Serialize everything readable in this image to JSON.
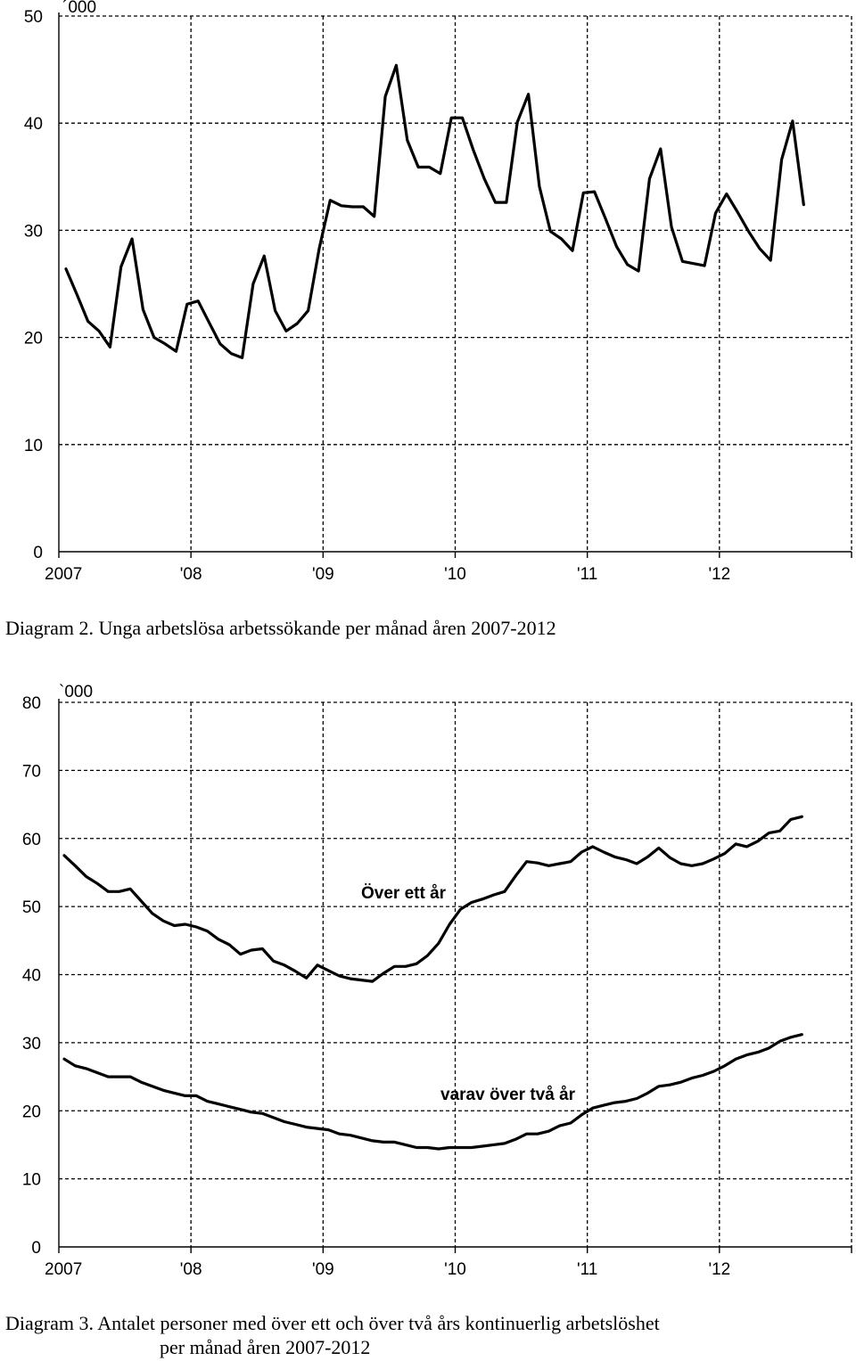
{
  "chart_data": [
    {
      "type": "line",
      "unit_label": "´000",
      "x_ticks": [
        "2007",
        "'08",
        "'09",
        "'10",
        "'11",
        "'12"
      ],
      "ylim": [
        0,
        50
      ],
      "y_ticks": [
        "0",
        "10",
        "20",
        "30",
        "40",
        "50"
      ],
      "grid": true,
      "series": [
        {
          "values": [
            26.4,
            24.0,
            21.5,
            20.6,
            19.1,
            26.6,
            29.2,
            22.6,
            20.0,
            19.4,
            18.7,
            23.1,
            23.4,
            21.4,
            19.4,
            18.5,
            18.1,
            25.0,
            27.6,
            22.5,
            20.6,
            21.3,
            22.5,
            28.3,
            32.8,
            32.3,
            32.2,
            32.2,
            31.3,
            42.5,
            45.4,
            38.4,
            35.9,
            35.9,
            35.3,
            40.5,
            40.5,
            37.5,
            34.8,
            32.6,
            32.6,
            40.1,
            42.7,
            34.1,
            29.9,
            29.2,
            28.1,
            33.5,
            33.6,
            31.1,
            28.5,
            26.8,
            26.2,
            34.8,
            37.6,
            30.3,
            27.1,
            26.9,
            26.7,
            31.6,
            33.4,
            31.7,
            29.9,
            28.3,
            27.2,
            36.6,
            40.2,
            32.4
          ]
        }
      ]
    },
    {
      "type": "line",
      "unit_label": "`000",
      "x_ticks": [
        "2007",
        "'08",
        "'09",
        "'10",
        "'11",
        "'12"
      ],
      "ylim": [
        0,
        80
      ],
      "y_ticks": [
        "0",
        "10",
        "20",
        "30",
        "40",
        "50",
        "60",
        "70",
        "80"
      ],
      "grid": true,
      "series": [
        {
          "name": "Över ett år",
          "values": [
            57.5,
            56.0,
            54.4,
            53.4,
            52.2,
            52.2,
            52.6,
            50.8,
            49.0,
            47.9,
            47.2,
            47.4,
            47.0,
            46.4,
            45.2,
            44.4,
            43.0,
            43.6,
            43.8,
            42.0,
            41.4,
            40.5,
            39.5,
            41.4,
            40.6,
            39.8,
            39.4,
            39.2,
            39.0,
            40.2,
            41.2,
            41.2,
            41.6,
            42.8,
            44.6,
            47.4,
            49.6,
            50.6,
            51.1,
            51.7,
            52.2,
            54.5,
            56.6,
            56.4,
            56.0,
            56.3,
            56.6,
            58.0,
            58.8,
            58.0,
            57.3,
            56.9,
            56.3,
            57.3,
            58.6,
            57.2,
            56.3,
            56.0,
            56.3,
            57.0,
            57.8,
            59.2,
            58.8,
            59.6,
            60.8,
            61.1,
            62.8,
            63.2
          ]
        },
        {
          "name": "varav över två år",
          "values": [
            27.6,
            26.6,
            26.2,
            25.6,
            25.0,
            25.0,
            25.0,
            24.2,
            23.6,
            23.0,
            22.6,
            22.2,
            22.2,
            21.4,
            21.0,
            20.6,
            20.2,
            19.8,
            19.6,
            19.0,
            18.4,
            18.0,
            17.6,
            17.4,
            17.2,
            16.6,
            16.4,
            16.0,
            15.6,
            15.4,
            15.4,
            15.0,
            14.6,
            14.6,
            14.4,
            14.6,
            14.6,
            14.6,
            14.8,
            15.0,
            15.2,
            15.8,
            16.6,
            16.6,
            17.0,
            17.8,
            18.2,
            19.4,
            20.4,
            20.8,
            21.2,
            21.4,
            21.8,
            22.6,
            23.6,
            23.8,
            24.2,
            24.8,
            25.2,
            25.8,
            26.6,
            27.6,
            28.2,
            28.6,
            29.2,
            30.2,
            30.8,
            31.2
          ]
        }
      ]
    }
  ],
  "captions": {
    "diagram2": "Diagram 2.  Unga arbetslösa arbetssökande per månad åren 2007-2012",
    "diagram3_line1": "Diagram 3. Antalet personer med över ett och över två års kontinuerlig arbetslöshet",
    "diagram3_line2": "per månad åren 2007-2012"
  }
}
